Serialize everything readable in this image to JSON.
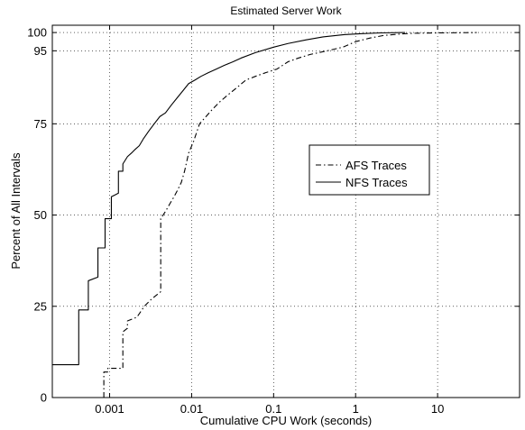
{
  "chart_data": {
    "type": "line",
    "title": "Estimated Server Work",
    "xlabel": "Cumulative CPU Work (seconds)",
    "ylabel": "Percent of All Intervals",
    "x_scale": "log",
    "xlim": [
      0.0002,
      100
    ],
    "ylim": [
      0,
      102
    ],
    "x_ticks": [
      0.001,
      0.01,
      0.1,
      1,
      10
    ],
    "x_tick_labels": [
      "0.001",
      "0.01",
      "0.1",
      "1",
      "10"
    ],
    "y_ticks": [
      0,
      25,
      50,
      75,
      95,
      100
    ],
    "y_tick_labels": [
      "0",
      "25",
      "50",
      "75",
      "95",
      "100"
    ],
    "grid": true,
    "legend_position": "center-right",
    "series": [
      {
        "name": "AFS Traces",
        "style": "dash-dot",
        "color": "#000000",
        "points": [
          [
            0.00085,
            0
          ],
          [
            0.00085,
            7
          ],
          [
            0.00095,
            7
          ],
          [
            0.00095,
            8
          ],
          [
            0.00145,
            8
          ],
          [
            0.00145,
            18
          ],
          [
            0.00165,
            19
          ],
          [
            0.00165,
            21
          ],
          [
            0.00215,
            22
          ],
          [
            0.00265,
            25
          ],
          [
            0.00325,
            27
          ],
          [
            0.0042,
            29
          ],
          [
            0.0042,
            49
          ],
          [
            0.0048,
            51
          ],
          [
            0.0054,
            53
          ],
          [
            0.0061,
            55
          ],
          [
            0.0068,
            57
          ],
          [
            0.0075,
            59
          ],
          [
            0.0082,
            62
          ],
          [
            0.0092,
            67
          ],
          [
            0.0105,
            70
          ],
          [
            0.0125,
            75
          ],
          [
            0.015,
            77
          ],
          [
            0.018,
            79
          ],
          [
            0.022,
            81
          ],
          [
            0.028,
            83
          ],
          [
            0.036,
            85
          ],
          [
            0.046,
            87
          ],
          [
            0.06,
            88
          ],
          [
            0.08,
            89
          ],
          [
            0.11,
            90
          ],
          [
            0.15,
            92
          ],
          [
            0.2,
            93
          ],
          [
            0.28,
            94
          ],
          [
            0.45,
            95
          ],
          [
            0.7,
            96
          ],
          [
            1.0,
            97.5
          ],
          [
            1.5,
            98.5
          ],
          [
            2.2,
            99.2
          ],
          [
            3.5,
            99.6
          ],
          [
            5,
            99.8
          ],
          [
            10,
            99.9
          ],
          [
            30,
            100
          ]
        ]
      },
      {
        "name": "NFS Traces",
        "style": "solid",
        "color": "#000000",
        "points": [
          [
            0.0002,
            9
          ],
          [
            0.00042,
            9
          ],
          [
            0.00042,
            24
          ],
          [
            0.00055,
            24
          ],
          [
            0.00055,
            32
          ],
          [
            0.00072,
            33
          ],
          [
            0.00072,
            41
          ],
          [
            0.00088,
            41
          ],
          [
            0.00088,
            49
          ],
          [
            0.00105,
            49
          ],
          [
            0.00105,
            55
          ],
          [
            0.00128,
            56
          ],
          [
            0.00128,
            62
          ],
          [
            0.00145,
            62
          ],
          [
            0.00145,
            64
          ],
          [
            0.00165,
            66
          ],
          [
            0.00185,
            67
          ],
          [
            0.00205,
            68
          ],
          [
            0.0023,
            69
          ],
          [
            0.0026,
            71
          ],
          [
            0.003,
            73
          ],
          [
            0.0035,
            75
          ],
          [
            0.0041,
            77
          ],
          [
            0.0048,
            78
          ],
          [
            0.0056,
            80
          ],
          [
            0.0066,
            82
          ],
          [
            0.0078,
            84
          ],
          [
            0.0092,
            86
          ],
          [
            0.011,
            87
          ],
          [
            0.013,
            88
          ],
          [
            0.016,
            89
          ],
          [
            0.02,
            90
          ],
          [
            0.025,
            91
          ],
          [
            0.032,
            92
          ],
          [
            0.04,
            93
          ],
          [
            0.06,
            94.5
          ],
          [
            0.1,
            96
          ],
          [
            0.15,
            97
          ],
          [
            0.25,
            98
          ],
          [
            0.4,
            98.8
          ],
          [
            0.7,
            99.4
          ],
          [
            1.2,
            99.7
          ],
          [
            2,
            99.9
          ],
          [
            4,
            100
          ]
        ]
      }
    ]
  }
}
